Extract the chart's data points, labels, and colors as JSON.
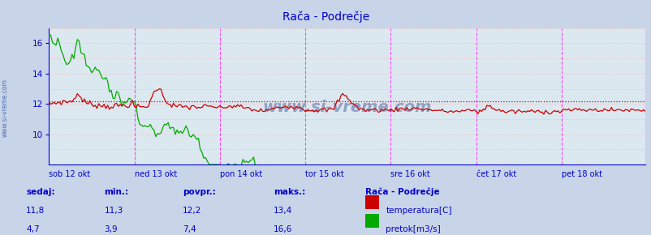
{
  "title": "Rača - Podrečje",
  "title_color": "#0000cc",
  "bg_color": "#c8d4e8",
  "plot_bg_color": "#dce8f0",
  "axis_color": "#0000cc",
  "grid_h_color": "#ffaaaa",
  "grid_v_color": "#ff44ff",
  "days": [
    "sob 12 okt",
    "ned 13 okt",
    "pon 14 okt",
    "tor 15 okt",
    "sre 16 okt",
    "čet 17 okt",
    "pet 18 okt"
  ],
  "day_positions": [
    0,
    48,
    96,
    144,
    192,
    240,
    288
  ],
  "n_points": 336,
  "ymin": 8.0,
  "ymax": 17.0,
  "yticks": [
    10,
    12,
    14,
    16
  ],
  "watermark": "www.si-vreme.com",
  "watermark_color": "#1a3a8a",
  "legend_title": "Rača - Podrečje",
  "temp_color": "#cc0000",
  "flow_color": "#00aa00",
  "temp_avg": 12.2,
  "flow_avg": 7.4,
  "sedaj_label": "sedaj:",
  "min_label": "min.:",
  "povpr_label": "povpr.:",
  "maks_label": "maks.:",
  "temp_sedaj": "11,8",
  "temp_min": "11,3",
  "temp_povpr": "12,2",
  "temp_maks": "13,4",
  "flow_sedaj": "4,7",
  "flow_min": "3,9",
  "flow_povpr": "7,4",
  "flow_maks": "16,6",
  "temp_label": "temperatura[C]",
  "flow_label": "pretok[m3/s]"
}
